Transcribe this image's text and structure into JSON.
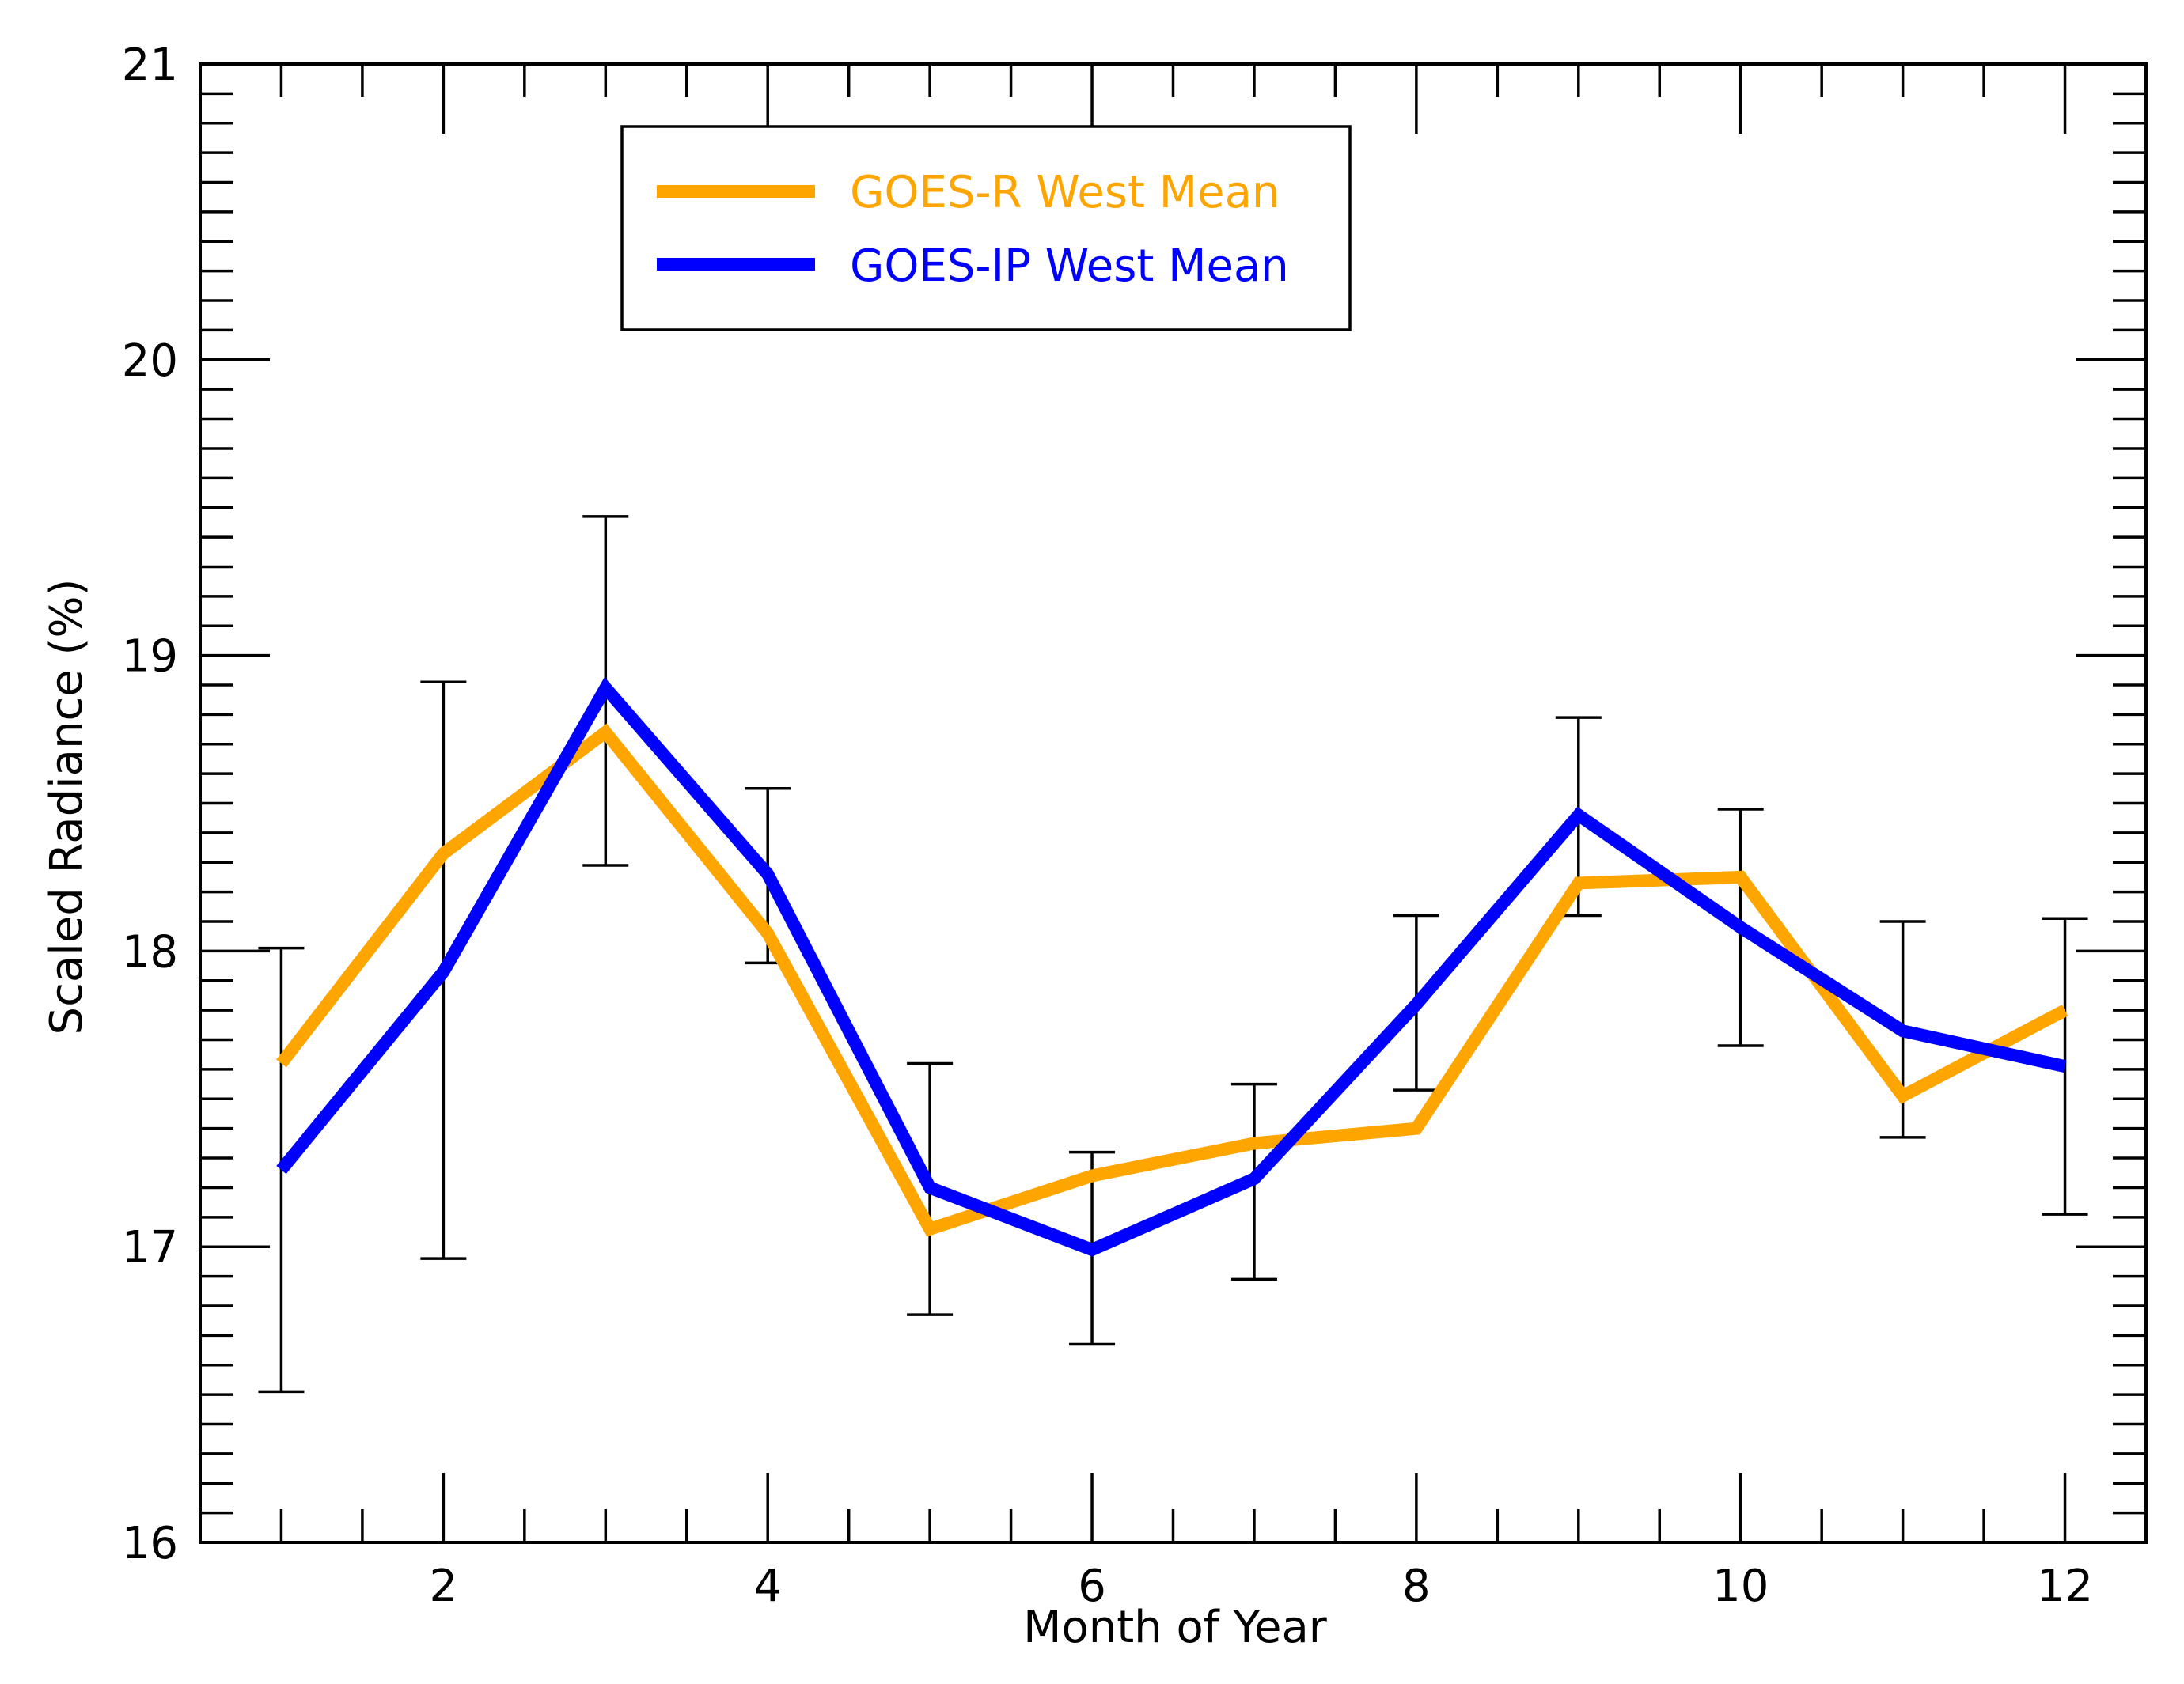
{
  "chart_data": {
    "type": "line",
    "title": "",
    "xlabel": "Month of Year",
    "ylabel": "Scaled Radiance (%)",
    "xlim": [
      0.5,
      12.5
    ],
    "ylim": [
      16,
      21
    ],
    "x_major_ticks": [
      2,
      4,
      6,
      8,
      10,
      12
    ],
    "x_minor_ticks": [
      1,
      3,
      5,
      7,
      9,
      11
    ],
    "y_major_ticks": [
      16,
      17,
      18,
      19,
      20,
      21
    ],
    "y_minor_step": 0.1,
    "grid": false,
    "legend_position": "top-left",
    "x": [
      1,
      2,
      3,
      4,
      5,
      6,
      7,
      8,
      9,
      10,
      11,
      12
    ],
    "series": [
      {
        "name": "GOES-R West Mean",
        "color": "#FFA500",
        "values": [
          17.62,
          18.33,
          18.74,
          18.06,
          17.06,
          17.24,
          17.35,
          17.4,
          18.23,
          18.25,
          17.51,
          17.8
        ]
      },
      {
        "name": "GOES-IP West Mean",
        "color": "#0000FF",
        "values": [
          17.26,
          17.93,
          18.89,
          18.26,
          17.2,
          16.99,
          17.23,
          17.82,
          18.46,
          18.08,
          17.73,
          17.61
        ]
      }
    ],
    "error_bars": [
      {
        "x": 1,
        "low": 16.51,
        "high": 18.01
      },
      {
        "x": 2,
        "low": 16.96,
        "high": 18.91
      },
      {
        "x": 3,
        "low": 18.29,
        "high": 19.47
      },
      {
        "x": 4,
        "low": 17.96,
        "high": 18.55
      },
      {
        "x": 5,
        "low": 16.77,
        "high": 17.62
      },
      {
        "x": 6,
        "low": 16.67,
        "high": 17.32
      },
      {
        "x": 7,
        "low": 16.89,
        "high": 17.55
      },
      {
        "x": 8,
        "low": 17.53,
        "high": 18.12
      },
      {
        "x": 9,
        "low": 18.12,
        "high": 18.79
      },
      {
        "x": 10,
        "low": 17.68,
        "high": 18.48
      },
      {
        "x": 11,
        "low": 17.37,
        "high": 18.1
      },
      {
        "x": 12,
        "low": 17.11,
        "high": 18.11
      }
    ]
  }
}
